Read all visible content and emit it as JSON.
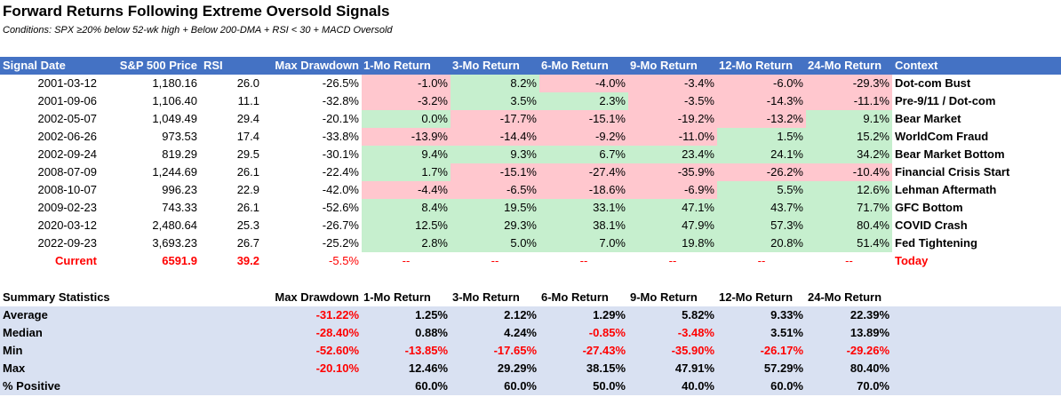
{
  "title": "Forward Returns Following Extreme Oversold Signals",
  "subtitle": "Conditions: SPX ≥20% below 52-wk high + Below 200-DMA + RSI < 30 + MACD Oversold",
  "headers": [
    "Signal Date",
    "S&P 500 Price",
    "RSI",
    "Max Drawdown",
    "1-Mo Return",
    "3-Mo Return",
    "6-Mo Return",
    "9-Mo Return",
    "12-Mo Return",
    "24-Mo Return",
    "Context"
  ],
  "rows": [
    {
      "date": "2001-03-12",
      "price": "1,180.16",
      "rsi": "26.0",
      "dd": "-26.5%",
      "returns": [
        "-1.0%",
        "8.2%",
        "-4.0%",
        "-3.4%",
        "-6.0%",
        "-29.3%"
      ],
      "context": "Dot-com Bust"
    },
    {
      "date": "2001-09-06",
      "price": "1,106.40",
      "rsi": "11.1",
      "dd": "-32.8%",
      "returns": [
        "-3.2%",
        "3.5%",
        "2.3%",
        "-3.5%",
        "-14.3%",
        "-11.1%"
      ],
      "context": "Pre-9/11 / Dot-com"
    },
    {
      "date": "2002-05-07",
      "price": "1,049.49",
      "rsi": "29.4",
      "dd": "-20.1%",
      "returns": [
        "0.0%",
        "-17.7%",
        "-15.1%",
        "-19.2%",
        "-13.2%",
        "9.1%"
      ],
      "context": "Bear Market"
    },
    {
      "date": "2002-06-26",
      "price": "973.53",
      "rsi": "17.4",
      "dd": "-33.8%",
      "returns": [
        "-13.9%",
        "-14.4%",
        "-9.2%",
        "-11.0%",
        "1.5%",
        "15.2%"
      ],
      "context": "WorldCom Fraud"
    },
    {
      "date": "2002-09-24",
      "price": "819.29",
      "rsi": "29.5",
      "dd": "-30.1%",
      "returns": [
        "9.4%",
        "9.3%",
        "6.7%",
        "23.4%",
        "24.1%",
        "34.2%"
      ],
      "context": "Bear Market Bottom"
    },
    {
      "date": "2008-07-09",
      "price": "1,244.69",
      "rsi": "26.1",
      "dd": "-22.4%",
      "returns": [
        "1.7%",
        "-15.1%",
        "-27.4%",
        "-35.9%",
        "-26.2%",
        "-10.4%"
      ],
      "context": "Financial Crisis Start"
    },
    {
      "date": "2008-10-07",
      "price": "996.23",
      "rsi": "22.9",
      "dd": "-42.0%",
      "returns": [
        "-4.4%",
        "-6.5%",
        "-18.6%",
        "-6.9%",
        "5.5%",
        "12.6%"
      ],
      "context": "Lehman Aftermath"
    },
    {
      "date": "2009-02-23",
      "price": "743.33",
      "rsi": "26.1",
      "dd": "-52.6%",
      "returns": [
        "8.4%",
        "19.5%",
        "33.1%",
        "47.1%",
        "43.7%",
        "71.7%"
      ],
      "context": "GFC Bottom"
    },
    {
      "date": "2020-03-12",
      "price": "2,480.64",
      "rsi": "25.3",
      "dd": "-26.7%",
      "returns": [
        "12.5%",
        "29.3%",
        "38.1%",
        "47.9%",
        "57.3%",
        "80.4%"
      ],
      "context": "COVID Crash"
    },
    {
      "date": "2022-09-23",
      "price": "3,693.23",
      "rsi": "26.7",
      "dd": "-25.2%",
      "returns": [
        "2.8%",
        "5.0%",
        "7.0%",
        "19.8%",
        "20.8%",
        "51.4%"
      ],
      "context": "Fed Tightening"
    }
  ],
  "current": {
    "label": "Current",
    "price": "6591.9",
    "rsi": "39.2",
    "dd": "-5.5%",
    "returns": [
      "--",
      "--",
      "--",
      "--",
      "--",
      "--"
    ],
    "context": "Today"
  },
  "summary": {
    "title": "Summary Statistics",
    "headers": [
      "Max Drawdown",
      "1-Mo Return",
      "3-Mo Return",
      "6-Mo Return",
      "9-Mo Return",
      "12-Mo Return",
      "24-Mo Return"
    ],
    "rows": [
      {
        "label": "Average",
        "dd": "-31.22%",
        "values": [
          "1.25%",
          "2.12%",
          "1.29%",
          "5.82%",
          "9.33%",
          "22.39%"
        ]
      },
      {
        "label": "Median",
        "dd": "-28.40%",
        "values": [
          "0.88%",
          "4.24%",
          "-0.85%",
          "-3.48%",
          "3.51%",
          "13.89%"
        ]
      },
      {
        "label": "Min",
        "dd": "-52.60%",
        "values": [
          "-13.85%",
          "-17.65%",
          "-27.43%",
          "-35.90%",
          "-26.17%",
          "-29.26%"
        ]
      },
      {
        "label": "Max",
        "dd": "-20.10%",
        "values": [
          "12.46%",
          "29.29%",
          "38.15%",
          "47.91%",
          "57.29%",
          "80.40%"
        ]
      },
      {
        "label": "% Positive",
        "dd": "",
        "values": [
          "60.0%",
          "60.0%",
          "50.0%",
          "40.0%",
          "60.0%",
          "70.0%"
        ]
      }
    ]
  },
  "colors": {
    "header_bg": "#4472c4",
    "positive_bg": "#c6efce",
    "negative_bg": "#ffc7ce",
    "summary_bg": "#d9e1f2",
    "negative_text": "#ff0000"
  }
}
